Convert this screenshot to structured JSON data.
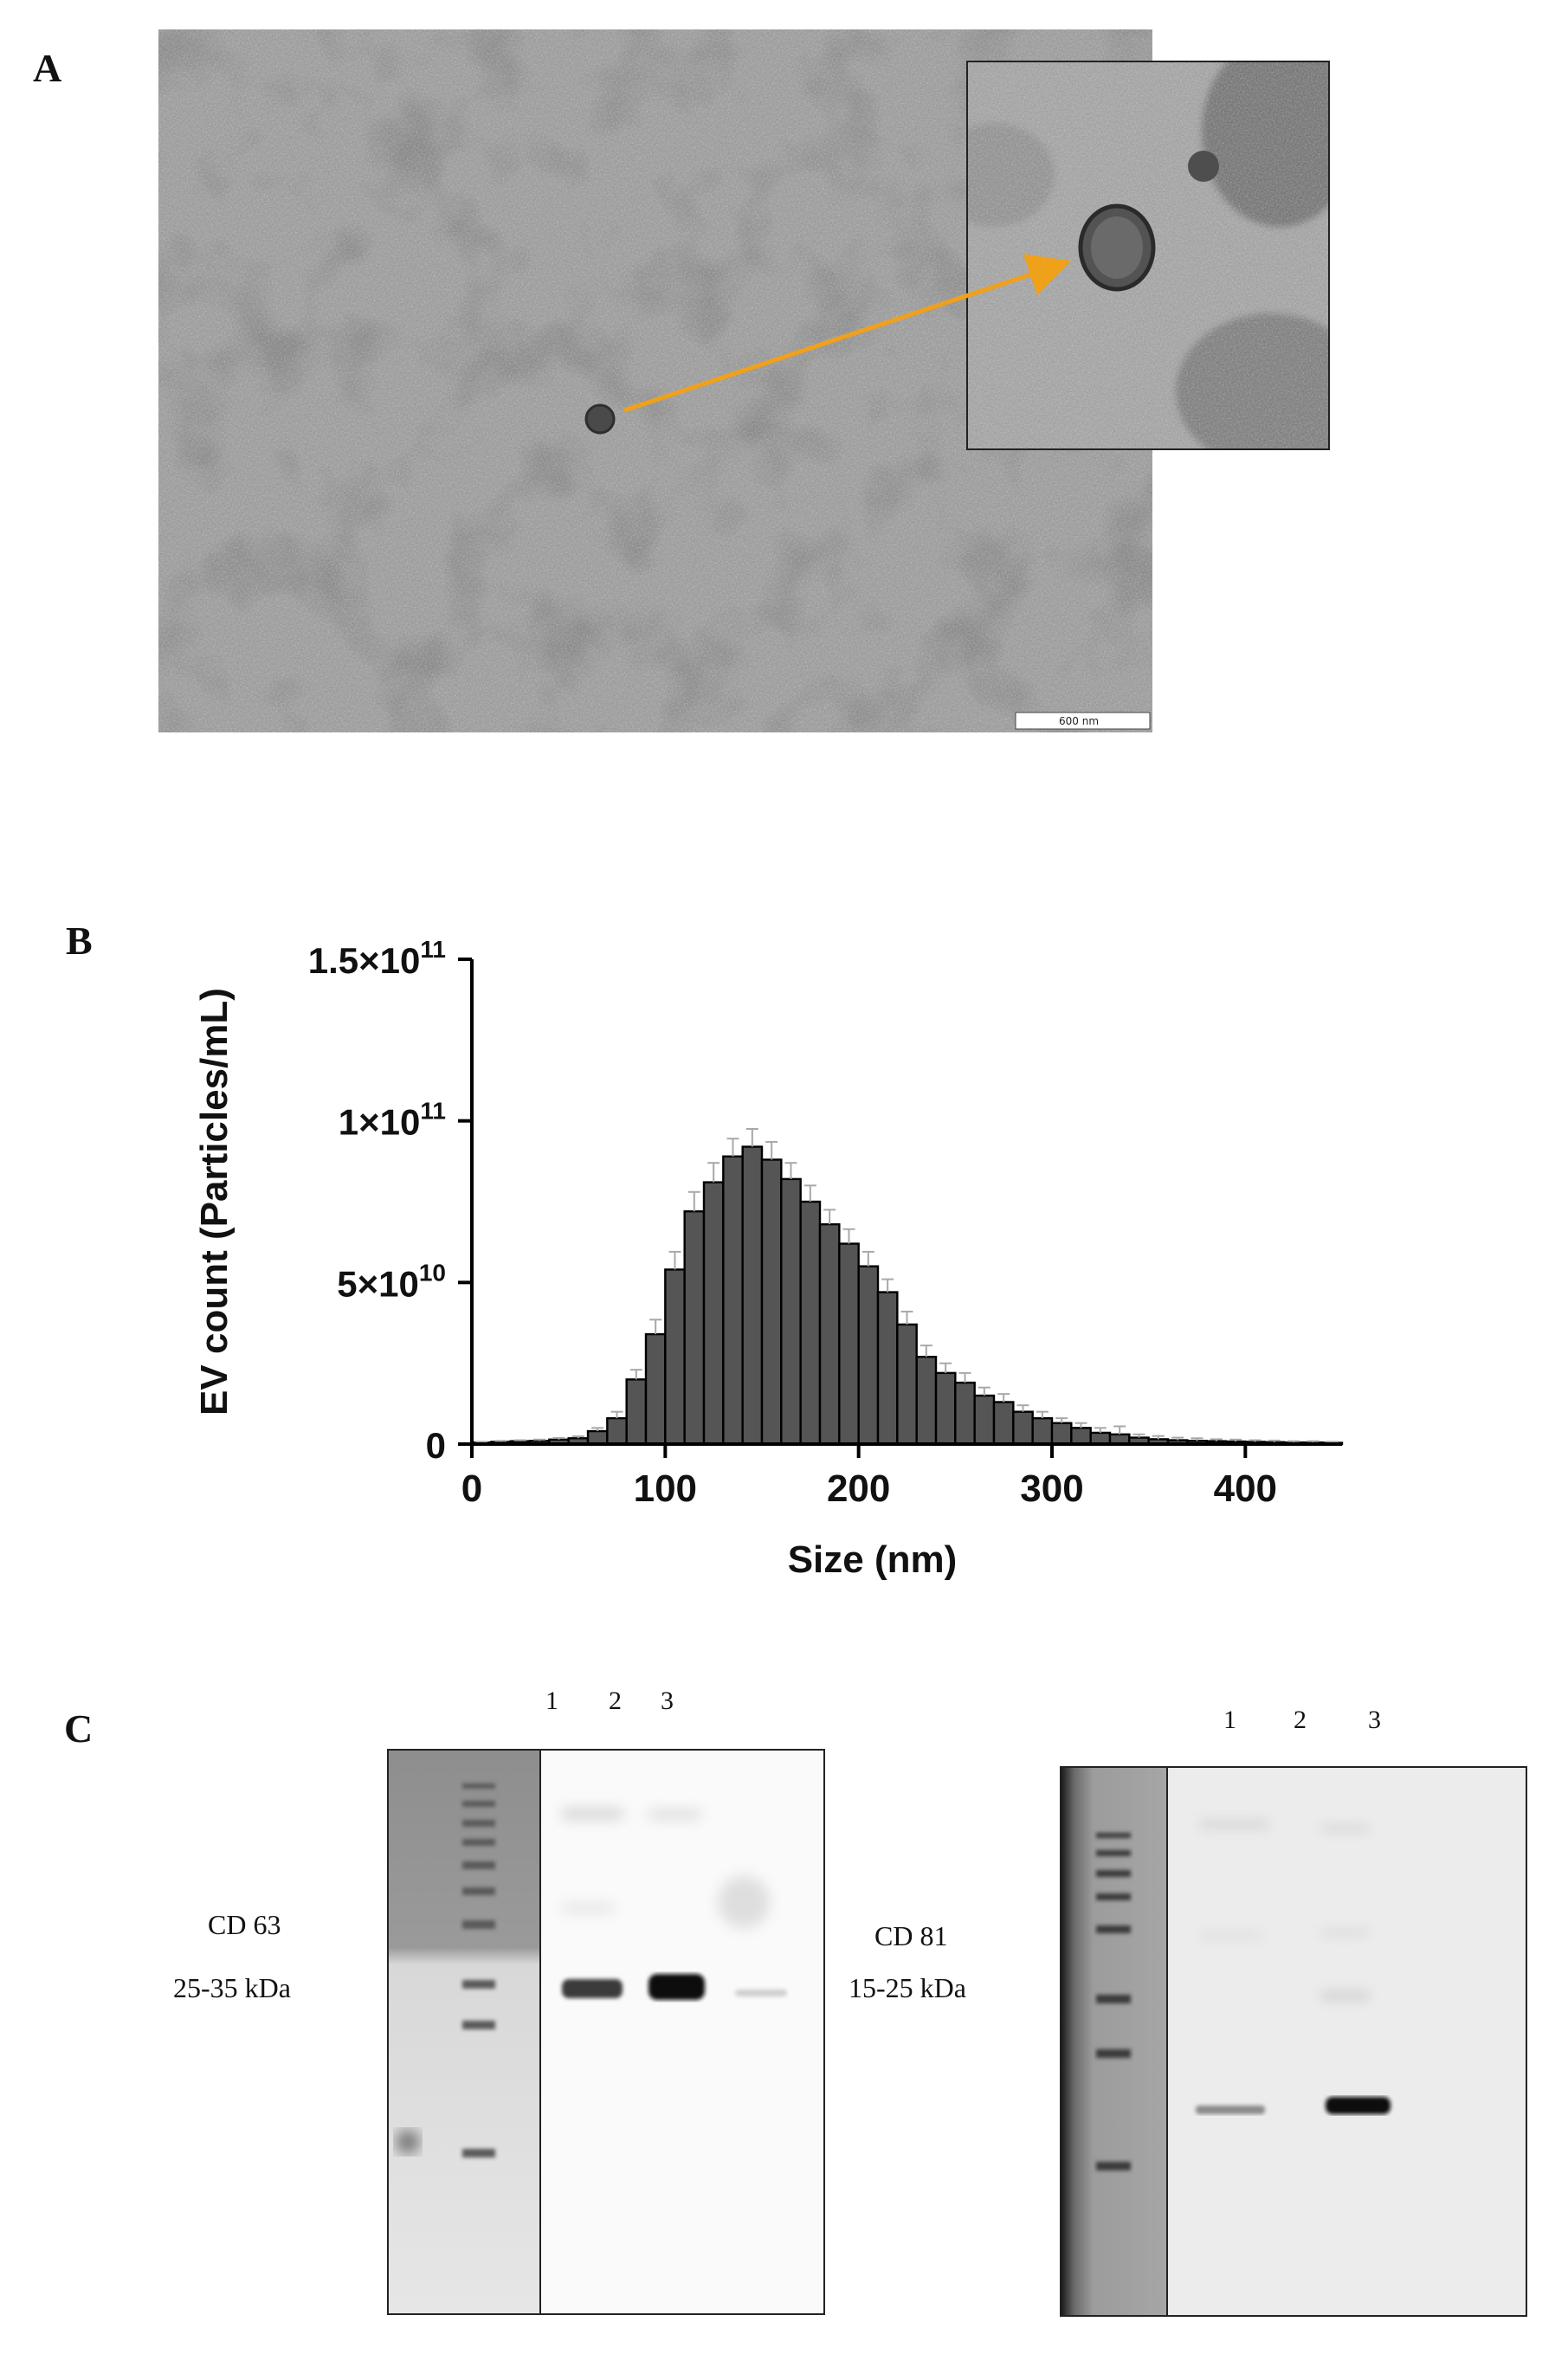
{
  "figure": {
    "panel_labels": {
      "a": "A",
      "b": "B",
      "c": "C"
    }
  },
  "panel_a": {
    "scale_bar_label": "600 nm",
    "arrow_color": "#f0a11a"
  },
  "chart_data": {
    "type": "bar",
    "xlabel": "Size (nm)",
    "ylabel": "EV count (Particles/mL)",
    "xlim": [
      0,
      450
    ],
    "ylim": [
      0,
      150000000000
    ],
    "x_ticks": [
      {
        "value": 0,
        "label": "0"
      },
      {
        "value": 100,
        "label": "100"
      },
      {
        "value": 200,
        "label": "200"
      },
      {
        "value": 300,
        "label": "300"
      },
      {
        "value": 400,
        "label": "400"
      }
    ],
    "y_ticks": [
      {
        "value": 0,
        "base": "0",
        "exp": ""
      },
      {
        "value": 50000000000,
        "base": "5×10",
        "exp": "10"
      },
      {
        "value": 100000000000,
        "base": "1×10",
        "exp": "11"
      },
      {
        "value": 150000000000,
        "base": "1.5×10",
        "exp": "11"
      }
    ],
    "bin_width_nm": 10,
    "x": [
      5,
      15,
      25,
      35,
      45,
      55,
      65,
      75,
      85,
      95,
      105,
      115,
      125,
      135,
      145,
      155,
      165,
      175,
      185,
      195,
      205,
      215,
      225,
      235,
      245,
      255,
      265,
      275,
      285,
      295,
      305,
      315,
      325,
      335,
      345,
      355,
      365,
      375,
      385,
      395,
      405,
      415,
      425,
      435,
      445
    ],
    "values": [
      500000000.0,
      700000000.0,
      900000000.0,
      1000000000.0,
      1400000000.0,
      1800000000.0,
      4000000000.0,
      8000000000.0,
      20000000000.0,
      34000000000.0,
      54000000000.0,
      72000000000.0,
      81000000000.0,
      89000000000.0,
      92000000000.0,
      88000000000.0,
      82000000000.0,
      75000000000.0,
      68000000000.0,
      62000000000.0,
      55000000000.0,
      47000000000.0,
      37000000000.0,
      27000000000.0,
      22000000000.0,
      19000000000.0,
      15000000000.0,
      13000000000.0,
      10000000000.0,
      8000000000.0,
      6500000000.0,
      5000000000.0,
      3500000000.0,
      3000000000.0,
      2000000000.0,
      1500000000.0,
      1200000000.0,
      1000000000.0,
      900000000.0,
      800000000.0,
      700000000.0,
      600000000.0,
      500000000.0,
      500000000.0,
      400000000.0
    ],
    "errors": [
      200000000.0,
      300000000.0,
      300000000.0,
      400000000.0,
      500000000.0,
      600000000.0,
      1000000000.0,
      2000000000.0,
      3000000000.0,
      4500000000.0,
      5500000000.0,
      6000000000.0,
      6000000000.0,
      5500000000.0,
      5500000000.0,
      5500000000.0,
      5000000000.0,
      5000000000.0,
      4500000000.0,
      4500000000.0,
      4500000000.0,
      4000000000.0,
      4000000000.0,
      3500000000.0,
      3000000000.0,
      3000000000.0,
      2500000000.0,
      2500000000.0,
      2000000000.0,
      2000000000.0,
      1500000000.0,
      1500000000.0,
      1500000000.0,
      2500000000.0,
      1000000000.0,
      1000000000.0,
      800000000.0,
      800000000.0,
      600000000.0,
      600000000.0,
      500000000.0,
      500000000.0,
      400000000.0,
      400000000.0,
      300000000.0
    ],
    "bar_color": "#555555",
    "error_color": "#a8a8a8"
  },
  "panel_c": {
    "left_blot": {
      "lanes": [
        "1",
        "2",
        "3"
      ],
      "marker": "CD 63",
      "size": "25-35 kDa"
    },
    "right_blot": {
      "lanes": [
        "1",
        "2",
        "3"
      ],
      "marker": "CD 81",
      "size": "15-25 kDa"
    }
  }
}
